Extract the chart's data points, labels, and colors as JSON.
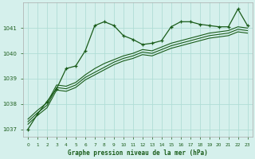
{
  "title": "Graphe pression niveau de la mer (hPa)",
  "bg_color": "#d5f0ec",
  "grid_color": "#b0ddd6",
  "line_color": "#1a5c1a",
  "xlim": [
    -0.5,
    23.5
  ],
  "ylim": [
    1036.7,
    1042.0
  ],
  "yticks": [
    1037,
    1038,
    1039,
    1040,
    1041
  ],
  "xticks": [
    0,
    1,
    2,
    3,
    4,
    5,
    6,
    7,
    8,
    9,
    10,
    11,
    12,
    13,
    14,
    15,
    16,
    17,
    18,
    19,
    20,
    21,
    22,
    23
  ],
  "series": [
    [
      1037.0,
      1037.6,
      1038.1,
      1038.6,
      1039.4,
      1039.5,
      1040.1,
      1041.1,
      1041.25,
      1041.1,
      1040.7,
      1040.55,
      1040.35,
      1040.4,
      1040.5,
      1041.05,
      1041.25,
      1041.25,
      1041.15,
      1041.1,
      1041.05,
      1041.05,
      1041.75,
      1041.1
    ],
    [
      1037.4,
      1037.75,
      1038.05,
      1038.75,
      1038.7,
      1038.85,
      1039.15,
      1039.4,
      1039.6,
      1039.75,
      1039.9,
      1040.0,
      1040.15,
      1040.1,
      1040.25,
      1040.4,
      1040.5,
      1040.6,
      1040.7,
      1040.8,
      1040.85,
      1040.9,
      1041.05,
      1041.0
    ],
    [
      1037.3,
      1037.65,
      1037.95,
      1038.65,
      1038.6,
      1038.75,
      1039.05,
      1039.25,
      1039.45,
      1039.65,
      1039.8,
      1039.9,
      1040.05,
      1040.0,
      1040.15,
      1040.3,
      1040.4,
      1040.5,
      1040.6,
      1040.7,
      1040.75,
      1040.8,
      1040.95,
      1040.9
    ],
    [
      1037.2,
      1037.55,
      1037.85,
      1038.55,
      1038.5,
      1038.65,
      1038.95,
      1039.15,
      1039.35,
      1039.55,
      1039.7,
      1039.8,
      1039.95,
      1039.9,
      1040.05,
      1040.2,
      1040.3,
      1040.4,
      1040.5,
      1040.6,
      1040.65,
      1040.7,
      1040.85,
      1040.8
    ]
  ]
}
